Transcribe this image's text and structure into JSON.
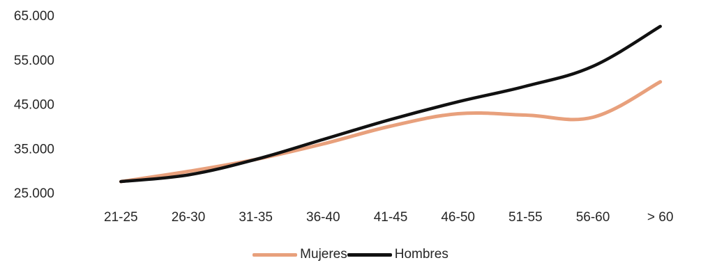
{
  "chart_data": {
    "type": "line",
    "categories": [
      "21-25",
      "26-30",
      "31-35",
      "36-40",
      "41-45",
      "46-50",
      "51-55",
      "56-60",
      "> 60"
    ],
    "y_ticks": [
      "25.000",
      "35.000",
      "45.000",
      "55.000",
      "65.000"
    ],
    "ylim": [
      25000,
      65000
    ],
    "grid": false,
    "legend_position": "bottom",
    "series": [
      {
        "name": "Mujeres",
        "color": "#e8a07c",
        "values": [
          27500,
          29800,
          32500,
          36000,
          40000,
          42800,
          42500,
          42000,
          50000
        ]
      },
      {
        "name": "Hombres",
        "color": "#111111",
        "values": [
          27500,
          29000,
          32500,
          37000,
          41500,
          45500,
          49000,
          53500,
          62500
        ]
      }
    ]
  }
}
